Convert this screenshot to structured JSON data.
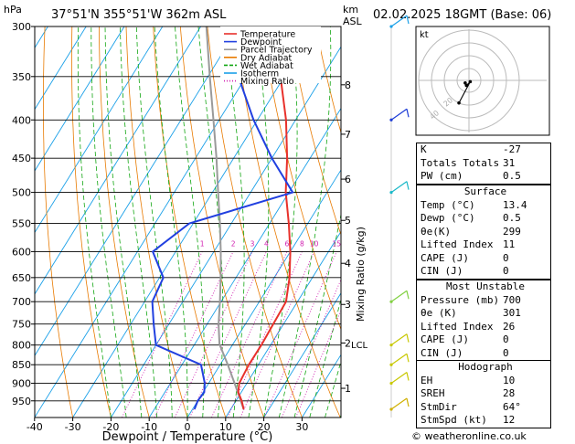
{
  "header": {
    "pressure_unit": "hPa",
    "location": "37°51'N 355°51'W 362m ASL",
    "alt_unit_km": "km",
    "alt_unit_asl": "ASL",
    "datetime": "02.02.2025 18GMT (Base: 06)"
  },
  "chart_data": {
    "type": "skew-t",
    "xlabel": "Dewpoint / Temperature (°C)",
    "ylabel_right": "Mixing Ratio (g/kg)",
    "temperature_axis_ticks": [
      -40,
      -30,
      -20,
      -10,
      0,
      10,
      20,
      30
    ],
    "pressure_ticks": [
      300,
      350,
      400,
      450,
      500,
      550,
      600,
      650,
      700,
      750,
      800,
      850,
      900,
      950
    ],
    "altitude_km_ticks": [
      {
        "km": 1,
        "p": 914
      },
      {
        "km": 2,
        "p": 795
      },
      {
        "km": 3,
        "p": 706
      },
      {
        "km": 4,
        "p": 622
      },
      {
        "km": 5,
        "p": 545
      },
      {
        "km": 6,
        "p": 480
      },
      {
        "km": 7,
        "p": 418
      },
      {
        "km": 8,
        "p": 359
      }
    ],
    "lcl_label": "LCL",
    "lcl_pressure": 798,
    "mixing_ratio_labels": [
      "1",
      "2",
      "3",
      "4",
      "6",
      "8",
      "10",
      "15",
      "20",
      "25"
    ],
    "mixing_ratio_values": [
      1,
      2,
      3,
      4,
      6,
      8,
      10,
      15,
      20,
      25
    ],
    "legend": [
      {
        "name": "Temperature",
        "color": "#e8312b"
      },
      {
        "name": "Dewpoint",
        "color": "#2140e0"
      },
      {
        "name": "Parcel Trajectory",
        "color": "#9a9a9a"
      },
      {
        "name": "Dry Adiabat",
        "color": "#e87a00"
      },
      {
        "name": "Wet Adiabat",
        "color": "#12a612"
      },
      {
        "name": "Isotherm",
        "color": "#1aa0e8"
      },
      {
        "name": "Mixing Ratio",
        "color": "#d01fb0"
      }
    ],
    "temperature_profile": [
      [
        975,
        13.4
      ],
      [
        950,
        11.5
      ],
      [
        925,
        9.2
      ],
      [
        900,
        8.0
      ],
      [
        850,
        7.5
      ],
      [
        800,
        7.6
      ],
      [
        750,
        7.3
      ],
      [
        700,
        7.0
      ],
      [
        650,
        4.0
      ],
      [
        600,
        0.0
      ],
      [
        550,
        -5.0
      ],
      [
        500,
        -10.8
      ],
      [
        450,
        -16.0
      ],
      [
        400,
        -22.5
      ],
      [
        350,
        -31.0
      ],
      [
        300,
        -40.0
      ]
    ],
    "dewpoint_profile": [
      [
        975,
        0.5
      ],
      [
        950,
        0.0
      ],
      [
        925,
        0.3
      ],
      [
        900,
        -1.0
      ],
      [
        850,
        -5.0
      ],
      [
        800,
        -20.0
      ],
      [
        750,
        -24.0
      ],
      [
        700,
        -28.0
      ],
      [
        650,
        -29.0
      ],
      [
        600,
        -36.0
      ],
      [
        550,
        -31.0
      ],
      [
        500,
        -9.0
      ],
      [
        450,
        -20.0
      ],
      [
        400,
        -31.0
      ],
      [
        350,
        -42.0
      ],
      [
        300,
        -50.0
      ]
    ],
    "parcel_profile": [
      [
        975,
        13.4
      ],
      [
        900,
        6.8
      ],
      [
        850,
        2.0
      ],
      [
        798,
        -3.5
      ],
      [
        750,
        -7.0
      ],
      [
        700,
        -10.3
      ],
      [
        650,
        -14.0
      ],
      [
        600,
        -18.2
      ],
      [
        550,
        -23.0
      ],
      [
        500,
        -28.5
      ],
      [
        450,
        -34.5
      ],
      [
        400,
        -41.5
      ],
      [
        350,
        -49.5
      ],
      [
        300,
        -58.5
      ]
    ]
  },
  "hodograph": {
    "label": "kt",
    "ring_labels": [
      "20",
      "40"
    ],
    "points_kt": [
      [
        -3,
        -2
      ],
      [
        -2,
        -4
      ],
      [
        1,
        -1
      ],
      [
        -8,
        -18
      ]
    ]
  },
  "wind_barbs": [
    {
      "p": 300,
      "color": "#1aa0e8"
    },
    {
      "p": 400,
      "color": "#1a3ad6"
    },
    {
      "p": 500,
      "color": "#1ab8c8"
    },
    {
      "p": 700,
      "color": "#80d040"
    },
    {
      "p": 800,
      "color": "#c8c800"
    },
    {
      "p": 850,
      "color": "#c8c800"
    },
    {
      "p": 900,
      "color": "#c8c800"
    },
    {
      "p": 975,
      "color": "#d0b000"
    }
  ],
  "indices": {
    "rows": [
      {
        "label": "K",
        "value": "-27"
      },
      {
        "label": "Totals Totals",
        "value": "31"
      },
      {
        "label": "PW (cm)",
        "value": "0.5"
      }
    ]
  },
  "surface": {
    "title": "Surface",
    "rows": [
      {
        "label": "Temp (°C)",
        "value": "13.4"
      },
      {
        "label": "Dewp (°C)",
        "value": "0.5"
      },
      {
        "label": "θe(K)",
        "value": "299"
      },
      {
        "label": "Lifted Index",
        "value": "11"
      },
      {
        "label": "CAPE (J)",
        "value": "0"
      },
      {
        "label": "CIN (J)",
        "value": "0"
      }
    ]
  },
  "most_unstable": {
    "title": "Most Unstable",
    "rows": [
      {
        "label": "Pressure (mb)",
        "value": "700"
      },
      {
        "label": "θe (K)",
        "value": "301"
      },
      {
        "label": "Lifted Index",
        "value": "26"
      },
      {
        "label": "CAPE (J)",
        "value": "0"
      },
      {
        "label": "CIN (J)",
        "value": "0"
      }
    ]
  },
  "hodograph_table": {
    "title": "Hodograph",
    "rows": [
      {
        "label": "EH",
        "value": "10"
      },
      {
        "label": "SREH",
        "value": "28"
      },
      {
        "label": "StmDir",
        "value": "64°"
      },
      {
        "label": "StmSpd (kt)",
        "value": "12"
      }
    ]
  },
  "footer": {
    "copyright": "© weatheronline.co.uk"
  }
}
